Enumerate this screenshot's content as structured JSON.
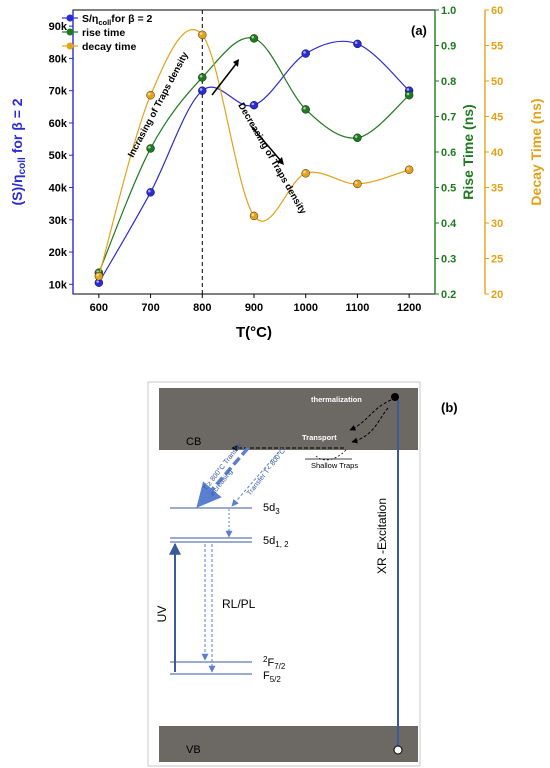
{
  "panel_a": {
    "label": "(a)",
    "xlabel": "T(°C)",
    "left_ylabel_main": "(S)/η",
    "left_ylabel_sub": "coll",
    "left_ylabel_tail": " for  β = 2",
    "right_ylabel_1": "Rise Time (ns)",
    "right_ylabel_2": "Decay Time (ns)",
    "annotation_up": "Incrasing of Traps density",
    "annotation_down": "Decreasing of Traps density",
    "legend": [
      {
        "pre": "S/η",
        "sub": "coll",
        "post": "for  β = 2"
      },
      {
        "pre": "rise time",
        "sub": "",
        "post": ""
      },
      {
        "pre": "decay time",
        "sub": "",
        "post": ""
      }
    ],
    "x_ticks": [
      "600",
      "700",
      "800",
      "900",
      "1000",
      "1100",
      "1200"
    ],
    "left_ticks": [
      "10k",
      "20k",
      "30k",
      "40k",
      "50k",
      "60k",
      "70k",
      "80k",
      "90k"
    ],
    "rise_ticks": [
      "0.2",
      "0.3",
      "0.4",
      "0.5",
      "0.6",
      "0.7",
      "0.8",
      "0.9",
      "1.0"
    ],
    "decay_ticks": [
      "20",
      "25",
      "30",
      "35",
      "40",
      "45",
      "50",
      "55",
      "60"
    ]
  },
  "chart_data": {
    "type": "line",
    "x": [
      600,
      700,
      800,
      900,
      1000,
      1100,
      1200
    ],
    "xlim": [
      550,
      1250
    ],
    "marker_line_x": 800,
    "series": [
      {
        "name": "S/ηcoll for β = 2",
        "axis": "left",
        "color": "#2b2bd6",
        "values": [
          10500,
          38500,
          70000,
          65500,
          81500,
          84500,
          70000
        ]
      },
      {
        "name": "rise time",
        "axis": "right1",
        "color": "#1f7a1f",
        "values": [
          0.26,
          0.61,
          0.81,
          0.92,
          0.72,
          0.64,
          0.76
        ]
      },
      {
        "name": "decay time",
        "axis": "right2",
        "color": "#e3a21a",
        "values": [
          22.5,
          48,
          56.5,
          31,
          37,
          35.5,
          37.5
        ]
      }
    ],
    "ylim_left": [
      7000,
      95000
    ],
    "ylim_right1": [
      0.2,
      1.0
    ],
    "ylim_right2": [
      20,
      60
    ]
  },
  "panel_b": {
    "label": "(b)",
    "cb": "CB",
    "vb": "VB",
    "thermalization": "thermalization",
    "transport": "Transport",
    "shallow_traps": "Shallow Traps",
    "transfer_high_1": "T ≥ 800°C Transfer",
    "transfer_high_2": "increasing",
    "transfer_low": "Transfer T< 800°C",
    "level_5d3": "5d",
    "level_5d3_sub": "3",
    "level_5d12": "5d",
    "level_5d12_sub": "1, 2",
    "level_f72_sup": "2",
    "level_f72": "F",
    "level_f72_sub": "7/2",
    "level_f52": "F",
    "level_f52_sub": "5/2",
    "uv": "UV",
    "rlpl": "RL/PL",
    "xr": "XR -Excitation"
  }
}
